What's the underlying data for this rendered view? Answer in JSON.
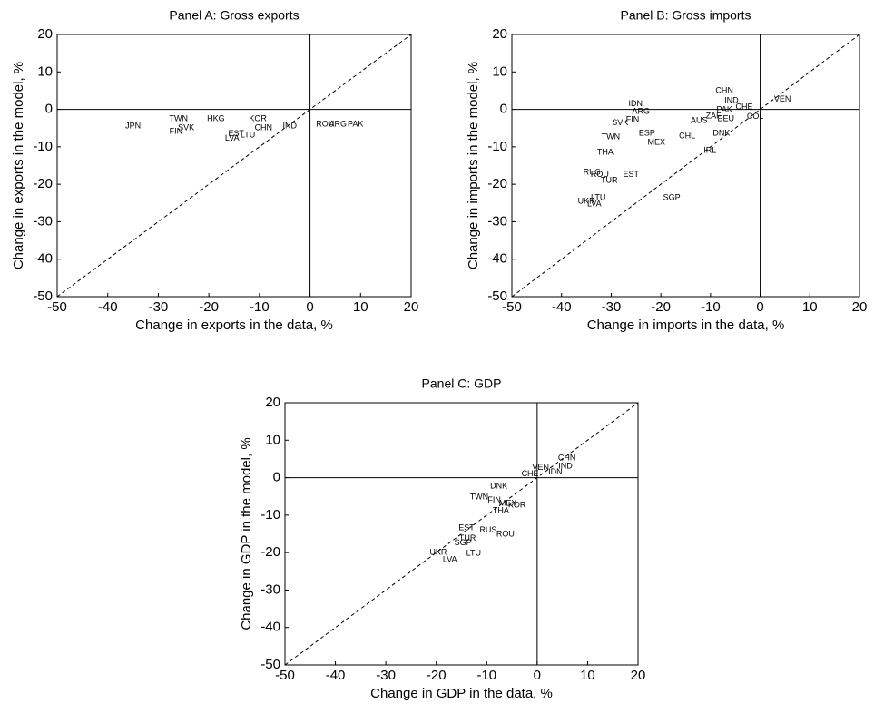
{
  "chart_data": [
    {
      "type": "scatter",
      "title": "Panel A: Gross exports",
      "x_label": "Change in exports in the data, %",
      "y_label": "Change in exports in the model, %",
      "xlim": [
        -50,
        20
      ],
      "ylim": [
        -50,
        20
      ],
      "xticks": [
        -50,
        -40,
        -30,
        -20,
        -10,
        0,
        10,
        20
      ],
      "yticks": [
        -50,
        -40,
        -30,
        -20,
        -10,
        0,
        10,
        20
      ],
      "labels": [
        "JPN",
        "TWN",
        "FIN",
        "SVK",
        "HKG",
        "KOR",
        "LVA",
        "LTU",
        "EST",
        "CHN",
        "IND",
        "ROU",
        "ARG",
        "PAK"
      ],
      "x": [
        -35,
        -26,
        -26.5,
        -24.5,
        -18.6,
        -10.3,
        -15.4,
        -12.3,
        -14.6,
        -9.2,
        -4,
        3,
        5.5,
        9
      ],
      "y": [
        -4.5,
        -2.5,
        -5.9,
        -5,
        -2.5,
        -2.5,
        -7.8,
        -6.9,
        -6.6,
        -5,
        -4.5,
        -4,
        -4,
        -4
      ]
    },
    {
      "type": "scatter",
      "title": "Panel B: Gross imports",
      "x_label": "Change in imports in the data, %",
      "y_label": "Change in imports in the model, %",
      "xlim": [
        -50,
        20
      ],
      "ylim": [
        -50,
        20
      ],
      "xticks": [
        -50,
        -40,
        -30,
        -20,
        -10,
        0,
        10,
        20
      ],
      "yticks": [
        -50,
        -40,
        -30,
        -20,
        -10,
        0,
        10,
        20
      ],
      "labels": [
        "CHN",
        "IND",
        "VEN",
        "PAK",
        "CHE",
        "COL",
        "DNK",
        "IRL",
        "SGP",
        "IDN",
        "ARG",
        "FIN",
        "SVK",
        "TWN",
        "THA",
        "RUS",
        "ROU",
        "TUR",
        "EST",
        "LTU",
        "UKR",
        "LVA",
        "ESP",
        "MEX",
        "AUS",
        "EEU",
        "ZAF",
        "CHL"
      ],
      "x": [
        -7.2,
        -5.8,
        4.5,
        -7.2,
        -3.2,
        -1,
        -7.8,
        -10.1,
        -17.8,
        -25.1,
        -24,
        -25.7,
        -28.2,
        -30.1,
        -31.2,
        -33.9,
        -32.3,
        -30.4,
        -26,
        -32.6,
        -35,
        -33.4,
        -22.8,
        -20.9,
        -12.3,
        -6.9,
        -9.4,
        -14.7
      ],
      "y": [
        5,
        2.3,
        2.6,
        -0.1,
        0.6,
        -2,
        -6.4,
        -11,
        -23.6,
        1.4,
        -0.6,
        -2.8,
        -3.7,
        -7.4,
        -11.5,
        -16.8,
        -17.5,
        -19,
        -17.5,
        -23.6,
        -24.6,
        -25.3,
        -6.4,
        -8.8,
        -3,
        -2.5,
        -1.8,
        -7.1
      ]
    },
    {
      "type": "scatter",
      "title": "Panel C: GDP",
      "x_label": "Change in GDP in the data, %",
      "y_label": "Change in GDP in the model, %",
      "xlim": [
        -50,
        20
      ],
      "ylim": [
        -50,
        20
      ],
      "xticks": [
        -50,
        -40,
        -30,
        -20,
        -10,
        0,
        10,
        20
      ],
      "yticks": [
        -50,
        -40,
        -30,
        -20,
        -10,
        0,
        10,
        20
      ],
      "labels": [
        "CHN",
        "IND",
        "VEN",
        "IDN",
        "CHE",
        "UKR",
        "LVA",
        "LTU",
        "SGP",
        "TUR",
        "EST",
        "RUS",
        "ROU",
        "TWN",
        "THA",
        "KOR",
        "DNK",
        "FIN",
        "MEX"
      ],
      "x": [
        5.9,
        5.6,
        0.7,
        3.6,
        -1.4,
        -19.6,
        -17.3,
        -12.6,
        -14.7,
        -13.8,
        -14,
        -9.7,
        -6.3,
        -11.5,
        -7.2,
        -4,
        -7.6,
        -8.5,
        -5.8
      ],
      "y": [
        5.2,
        3,
        2.6,
        1.4,
        0.9,
        -20,
        -21.9,
        -20.2,
        -17.5,
        -16.3,
        -13.4,
        -14.1,
        -15.1,
        -5.2,
        -8.8,
        -7.4,
        -2.3,
        -6.1,
        -6.9
      ]
    }
  ]
}
